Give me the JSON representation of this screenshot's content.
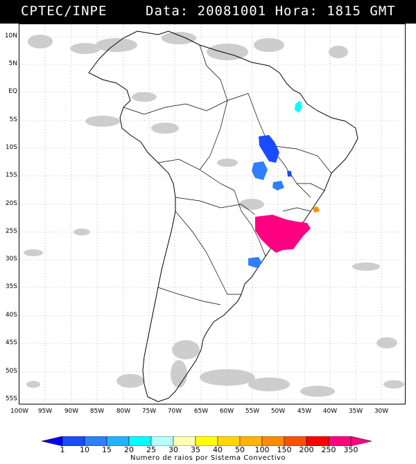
{
  "header": {
    "source": "CPTEC/INPE",
    "datetime": "Data: 20081001 Hora: 1815 GMT"
  },
  "map": {
    "lat_labels": [
      "10N",
      "5N",
      "EQ",
      "5S",
      "10S",
      "15S",
      "20S",
      "25S",
      "30S",
      "35S",
      "40S",
      "45S",
      "50S",
      "55S"
    ],
    "lon_labels": [
      "100W",
      "95W",
      "90W",
      "85W",
      "80W",
      "75W",
      "70W",
      "65W",
      "60W",
      "55W",
      "50W",
      "45W",
      "40W",
      "35W",
      "30W"
    ],
    "grid": "dotted",
    "cloud_color": "#c8c8c8",
    "coast_color": "#000000"
  },
  "legend": {
    "values": [
      "1",
      "10",
      "15",
      "20",
      "25",
      "30",
      "35",
      "40",
      "50",
      "100",
      "150",
      "200",
      "250",
      "350"
    ],
    "colors": [
      "#0000ff",
      "#1a4cff",
      "#2f7fff",
      "#1fb4ff",
      "#00ffff",
      "#b4ffff",
      "#ffffb4",
      "#ffff00",
      "#ffd800",
      "#ffb400",
      "#ff8c00",
      "#ff5000",
      "#ff0000",
      "#ff0080"
    ],
    "caption": "Numero de raios por Sistema Convectivo"
  }
}
